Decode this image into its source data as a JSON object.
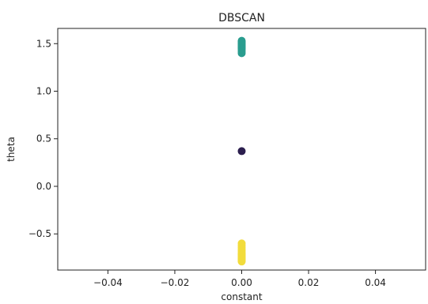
{
  "chart_data": {
    "type": "scatter",
    "title": "DBSCAN",
    "xlabel": "constant",
    "ylabel": "theta",
    "xlim": [
      -0.055,
      0.055
    ],
    "ylim": [
      -0.88,
      1.66
    ],
    "xticks": [
      -0.04,
      -0.02,
      0.0,
      0.02,
      0.04
    ],
    "xtick_labels": [
      "−0.04",
      "−0.02",
      "0.00",
      "0.02",
      "0.04"
    ],
    "yticks": [
      -0.5,
      0.0,
      0.5,
      1.0,
      1.5
    ],
    "ytick_labels": [
      "−0.5",
      "0.0",
      "0.5",
      "1.0",
      "1.5"
    ],
    "grid": false,
    "legend": "none",
    "clusters": [
      {
        "color": "#2a9d8f",
        "x": [
          0.0,
          0.0,
          0.0,
          0.0,
          0.0,
          0.0,
          0.0,
          0.0,
          0.0,
          0.0,
          0.0,
          0.0
        ],
        "y": [
          1.4,
          1.42,
          1.44,
          1.45,
          1.46,
          1.47,
          1.48,
          1.49,
          1.5,
          1.51,
          1.52,
          1.53
        ]
      },
      {
        "color": "#2b1e4e",
        "x": [
          0.0
        ],
        "y": [
          0.37
        ]
      },
      {
        "color": "#f2dc3c",
        "x": [
          0.0,
          0.0,
          0.0,
          0.0,
          0.0,
          0.0,
          0.0,
          0.0,
          0.0,
          0.0,
          0.0,
          0.0,
          0.0,
          0.0,
          0.0
        ],
        "y": [
          -0.79,
          -0.78,
          -0.77,
          -0.76,
          -0.75,
          -0.74,
          -0.73,
          -0.72,
          -0.71,
          -0.7,
          -0.68,
          -0.66,
          -0.64,
          -0.62,
          -0.6
        ]
      }
    ]
  }
}
